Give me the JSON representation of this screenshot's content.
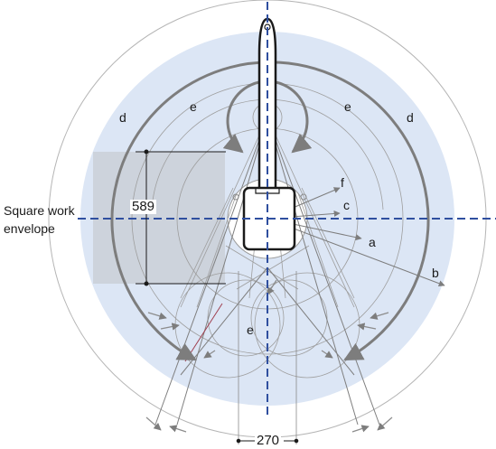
{
  "labels": {
    "square_line1": "Square work",
    "square_line2": "envelope",
    "dim_589": "589",
    "dim_270": "270",
    "a": "a",
    "b": "b",
    "c": "c",
    "d_left": "d",
    "d_right": "d",
    "e_left": "e",
    "e_right": "e",
    "e_bottom": "e",
    "f": "f"
  },
  "colors": {
    "envelope_fill": "#dce6f5",
    "square_fill": "#c9ced6",
    "axis": "#2f4f9f",
    "outline": "#1a1a1a",
    "gray_line": "#7f7f7f",
    "light_line": "#b8b8b8",
    "arrow": "#8c8c8c"
  }
}
